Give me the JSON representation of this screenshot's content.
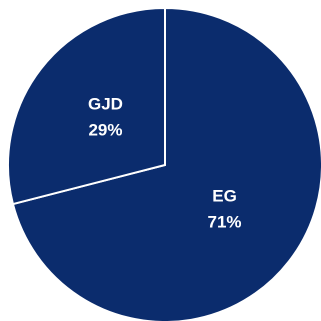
{
  "chart_data": {
    "type": "pie",
    "categories": [
      "EG",
      "GJD"
    ],
    "values": [
      71,
      29
    ],
    "value_labels": [
      "71%",
      "29%"
    ],
    "colors": [
      "#0b2c6d",
      "#0b2c6d"
    ],
    "start_angle": 0,
    "direction": "clockwise"
  }
}
